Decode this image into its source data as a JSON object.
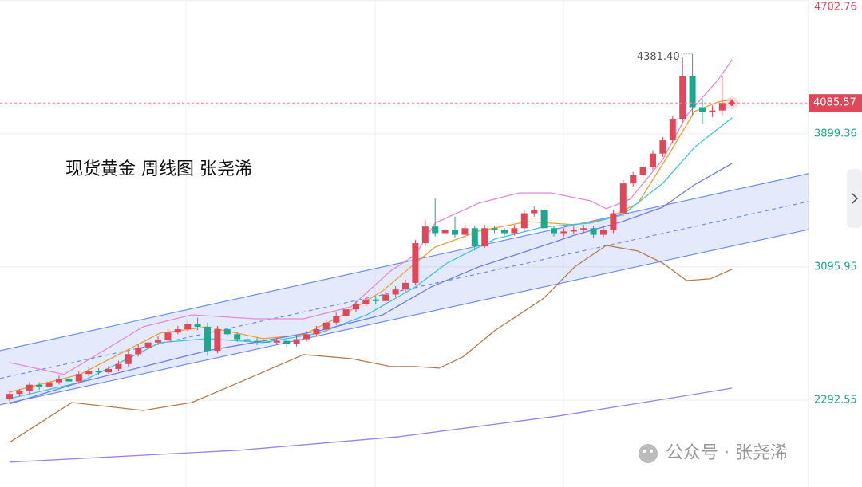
{
  "chart_data": {
    "type": "candlestick",
    "title": "现货黄金 周线图 张尧浠",
    "watermark": "公众号 · 张尧浠",
    "ylim": [
      1768,
      4707
    ],
    "yticks": [
      2292.55,
      3095.95,
      3899.36,
      4702.76
    ],
    "grid": true,
    "up_color": "#e0485a",
    "down_color": "#1fa68e",
    "open": [
      2300,
      2330,
      2345,
      2385,
      2370,
      2400,
      2420,
      2405,
      2450,
      2470,
      2460,
      2480,
      2510,
      2570,
      2610,
      2640,
      2655,
      2700,
      2720,
      2750,
      2735,
      2590,
      2720,
      2690,
      2660,
      2650,
      2645,
      2640,
      2650,
      2630,
      2660,
      2690,
      2720,
      2760,
      2800,
      2840,
      2870,
      2900,
      2890,
      2930,
      2960,
      3000,
      3240,
      3340,
      3300,
      3320,
      3290,
      3330,
      3220,
      3330,
      3320,
      3300,
      3330,
      3420,
      3440,
      3330,
      3300,
      3310,
      3320,
      3330,
      3290,
      3320,
      3420,
      3600,
      3650,
      3700,
      3780,
      3860,
      3990,
      4250,
      4060,
      4030,
      4040
    ],
    "high": [
      2345,
      2360,
      2400,
      2400,
      2415,
      2440,
      2430,
      2465,
      2490,
      2485,
      2500,
      2530,
      2590,
      2630,
      2660,
      2680,
      2720,
      2740,
      2770,
      2790,
      2760,
      2740,
      2730,
      2700,
      2675,
      2670,
      2665,
      2670,
      2665,
      2680,
      2710,
      2740,
      2780,
      2820,
      2860,
      2890,
      2920,
      2920,
      2950,
      2980,
      3020,
      3260,
      3380,
      3510,
      3340,
      3400,
      3350,
      3345,
      3350,
      3345,
      3330,
      3350,
      3440,
      3460,
      3450,
      3340,
      3330,
      3340,
      3350,
      3345,
      3340,
      3440,
      3620,
      3670,
      3720,
      3800,
      3880,
      4010,
      4360,
      4381.4,
      4110,
      4070,
      4250
    ],
    "low": [
      2285,
      2315,
      2330,
      2355,
      2360,
      2385,
      2390,
      2390,
      2435,
      2445,
      2450,
      2465,
      2495,
      2555,
      2595,
      2625,
      2640,
      2690,
      2705,
      2715,
      2560,
      2575,
      2675,
      2645,
      2630,
      2625,
      2620,
      2625,
      2610,
      2615,
      2645,
      2675,
      2705,
      2745,
      2785,
      2825,
      2855,
      2870,
      2875,
      2915,
      2945,
      2985,
      3220,
      3280,
      3280,
      3270,
      3270,
      3195,
      3210,
      3300,
      3285,
      3285,
      3310,
      3400,
      3320,
      3280,
      3280,
      3295,
      3300,
      3270,
      3275,
      3300,
      3400,
      3580,
      3630,
      3680,
      3760,
      3840,
      3970,
      4010,
      3960,
      4000,
      4010
    ],
    "close": [
      2330,
      2345,
      2385,
      2370,
      2400,
      2420,
      2405,
      2450,
      2470,
      2460,
      2480,
      2510,
      2570,
      2610,
      2640,
      2655,
      2700,
      2720,
      2750,
      2735,
      2590,
      2720,
      2690,
      2660,
      2650,
      2645,
      2640,
      2650,
      2630,
      2660,
      2690,
      2720,
      2760,
      2800,
      2840,
      2870,
      2900,
      2890,
      2930,
      2960,
      3000,
      3240,
      3340,
      3300,
      3320,
      3290,
      3330,
      3220,
      3330,
      3320,
      3300,
      3330,
      3420,
      3440,
      3330,
      3300,
      3310,
      3320,
      3330,
      3290,
      3320,
      3420,
      3600,
      3650,
      3700,
      3780,
      3860,
      3990,
      4250,
      4060,
      4030,
      4040,
      4085.57
    ],
    "lines": [
      {
        "color": "#e38ad8",
        "x": [
          0,
          5.5,
          13.5,
          18.4,
          24.8,
          29.7,
          34.5,
          38.5,
          41,
          43,
          47.4,
          51.5,
          54.7,
          58.7,
          60.3,
          62.7,
          66,
          68.4,
          71.6,
          73
        ],
        "values": [
          2519,
          2447,
          2735,
          2807,
          2783,
          2783,
          2855,
          3072,
          3168,
          3361,
          3481,
          3543,
          3543,
          3495,
          3447,
          3505,
          3745,
          4010,
          4226,
          4347
        ]
      },
      {
        "color": "#f0a032",
        "x": [
          0,
          7.1,
          15.2,
          20,
          25.6,
          29.7,
          33.7,
          37.7,
          41,
          43,
          47.4,
          52.3,
          57.1,
          60.3,
          63.5,
          66.8,
          69.2,
          71.6,
          73
        ],
        "values": [
          2341,
          2447,
          2697,
          2735,
          2663,
          2687,
          2807,
          2952,
          3119,
          3216,
          3312,
          3370,
          3351,
          3385,
          3481,
          3793,
          4034,
          4092,
          4106
        ]
      },
      {
        "color": "#3cc6dc",
        "x": [
          0,
          7.1,
          15.2,
          20,
          25.6,
          31.3,
          36.1,
          41,
          44.2,
          49,
          53.9,
          58.7,
          61.9,
          66,
          69.2,
          73
        ],
        "values": [
          2302,
          2399,
          2639,
          2663,
          2639,
          2697,
          2807,
          2976,
          3119,
          3264,
          3337,
          3361,
          3409,
          3601,
          3818,
          3996
        ]
      },
      {
        "color": "#6f7fe6",
        "x": [
          0,
          7.1,
          15.2,
          20,
          25.6,
          31.3,
          37.7,
          42.6,
          47.4,
          52.3,
          57.1,
          61.9,
          66,
          69.2,
          73
        ],
        "values": [
          2269,
          2399,
          2519,
          2591,
          2649,
          2711,
          2807,
          2976,
          3096,
          3192,
          3288,
          3370,
          3457,
          3592,
          3721
        ]
      },
      {
        "color": "#b47a52",
        "x": [
          0,
          6.3,
          13.5,
          18.4,
          23.2,
          29.7,
          34.5,
          38.5,
          41,
          43.4,
          45.8,
          49,
          53.9,
          57.1,
          60.3,
          63.5,
          66,
          68.4,
          70.8,
          73
        ],
        "values": [
          2038,
          2278,
          2230,
          2278,
          2399,
          2567,
          2543,
          2495,
          2495,
          2485,
          2553,
          2711,
          2904,
          3096,
          3226,
          3192,
          3119,
          3014,
          3024,
          3082
        ]
      },
      {
        "color": "#9d82ea",
        "x": [
          0,
          23.2,
          39.4,
          55.5,
          67.6,
          73
        ],
        "values": [
          1918,
          1990,
          2072,
          2197,
          2312,
          2365
        ]
      }
    ],
    "channel": {
      "upper": [
        2591,
        3659
      ],
      "middle": [
        2423,
        3491
      ],
      "lower": [
        2264,
        3322
      ]
    },
    "last_price": 4085.57,
    "high_annotation": {
      "value": 4381.4,
      "label": "4381.40"
    }
  }
}
